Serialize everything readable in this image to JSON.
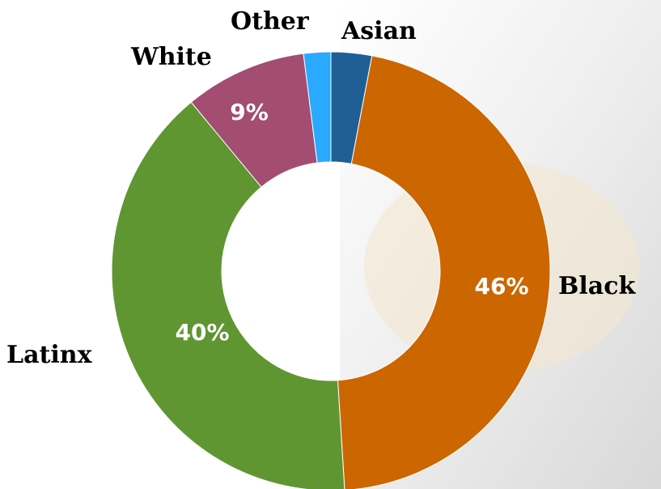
{
  "chart_data": {
    "type": "donut",
    "categories": [
      "Asian",
      "Black",
      "Latinx",
      "White",
      "Other"
    ],
    "values": [
      3,
      46,
      40,
      9,
      2
    ],
    "value_labels": [
      null,
      "46%",
      "40%",
      "9%",
      null
    ],
    "colors": [
      "#1f5f96",
      "#cc6600",
      "#5f9632",
      "#a34d72",
      "#29a9ff"
    ]
  }
}
